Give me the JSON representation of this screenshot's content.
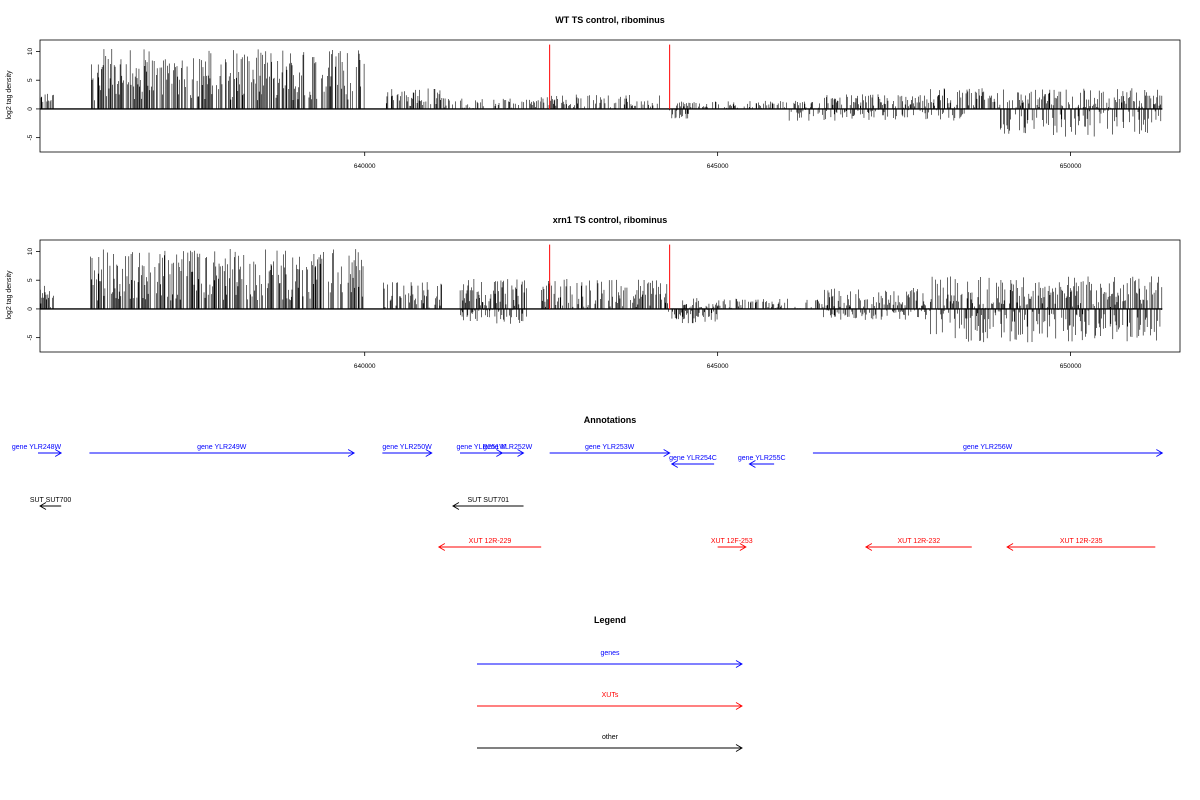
{
  "chart_data": [
    {
      "type": "bar",
      "title": "WT TS control, ribominus",
      "ylabel": "log2 tag density",
      "xlabel": "",
      "xlim": [
        635400,
        651550
      ],
      "ylim": [
        -7.5,
        12
      ],
      "x_ticks": [
        640000,
        645000,
        650000
      ],
      "x_tick_labels": [
        "640000",
        "645000",
        "650000"
      ],
      "y_ticks": [
        -5,
        0,
        5,
        10
      ],
      "y_tick_labels": [
        "-5",
        "0",
        "5",
        "10"
      ],
      "positive_segments": [
        {
          "start": 635400,
          "end": 635600,
          "mean": 1.5,
          "amp": 1.2
        },
        {
          "start": 636100,
          "end": 640000,
          "mean": 5.5,
          "amp": 4.5
        },
        {
          "start": 640300,
          "end": 641100,
          "mean": 1.5,
          "amp": 2.0
        },
        {
          "start": 641100,
          "end": 642500,
          "mean": 0.6,
          "amp": 1.2
        },
        {
          "start": 642500,
          "end": 644200,
          "mean": 1.0,
          "amp": 1.4
        },
        {
          "start": 644400,
          "end": 646500,
          "mean": 0.3,
          "amp": 1.0
        },
        {
          "start": 646500,
          "end": 648000,
          "mean": 1.0,
          "amp": 1.4
        },
        {
          "start": 648000,
          "end": 651300,
          "mean": 1.4,
          "amp": 2.0
        }
      ],
      "negative_segments": [
        {
          "start": 644300,
          "end": 644600,
          "mean": -0.6,
          "amp": 1.0
        },
        {
          "start": 646000,
          "end": 648500,
          "mean": -0.4,
          "amp": 1.5
        },
        {
          "start": 649000,
          "end": 651300,
          "mean": -1.2,
          "amp": 3.3
        }
      ],
      "red_lines": [
        {
          "x": 642620,
          "y": 11.2
        },
        {
          "x": 644320,
          "y": 11.2
        }
      ]
    },
    {
      "type": "bar",
      "title": "xrn1 TS control, ribominus",
      "ylabel": "log2 tag density",
      "xlabel": "",
      "xlim": [
        635400,
        651550
      ],
      "ylim": [
        -7.5,
        12
      ],
      "x_ticks": [
        640000,
        645000,
        650000
      ],
      "x_tick_labels": [
        "640000",
        "645000",
        "650000"
      ],
      "y_ticks": [
        -5,
        0,
        5,
        10
      ],
      "y_tick_labels": [
        "-5",
        "0",
        "5",
        "10"
      ],
      "positive_segments": [
        {
          "start": 635400,
          "end": 635600,
          "mean": 2.0,
          "amp": 2.0
        },
        {
          "start": 636100,
          "end": 640000,
          "mean": 5.5,
          "amp": 4.5
        },
        {
          "start": 640250,
          "end": 641100,
          "mean": 2.0,
          "amp": 2.5
        },
        {
          "start": 641350,
          "end": 642300,
          "mean": 2.5,
          "amp": 2.5
        },
        {
          "start": 642500,
          "end": 644300,
          "mean": 2.5,
          "amp": 2.5
        },
        {
          "start": 644500,
          "end": 646500,
          "mean": 0.6,
          "amp": 1.2
        },
        {
          "start": 646500,
          "end": 648000,
          "mean": 1.5,
          "amp": 2.0
        },
        {
          "start": 648000,
          "end": 651300,
          "mean": 2.4,
          "amp": 3.0
        }
      ],
      "negative_segments": [
        {
          "start": 641350,
          "end": 642300,
          "mean": -1.0,
          "amp": 1.5
        },
        {
          "start": 644300,
          "end": 645000,
          "mean": -1.2,
          "amp": 1.2
        },
        {
          "start": 646500,
          "end": 648000,
          "mean": -0.6,
          "amp": 1.2
        },
        {
          "start": 648000,
          "end": 651300,
          "mean": -2.0,
          "amp": 3.5
        }
      ],
      "red_lines": [
        {
          "x": 642620,
          "y": 11.2
        },
        {
          "x": 644320,
          "y": 11.2
        }
      ]
    }
  ],
  "annotations": {
    "title": "Annotations",
    "items": [
      {
        "label": "gene YLR248W",
        "start": 635000,
        "end": 635700,
        "strand": "+",
        "category": "gene",
        "row": 0
      },
      {
        "label": "gene YLR249W",
        "start": 636100,
        "end": 639850,
        "strand": "+",
        "category": "gene",
        "row": 0
      },
      {
        "label": "gene YLR250W",
        "start": 640250,
        "end": 640950,
        "strand": "+",
        "category": "gene",
        "row": 0
      },
      {
        "label": "gene YLR251W",
        "start": 641350,
        "end": 641950,
        "strand": "+",
        "category": "gene",
        "row": 0
      },
      {
        "label": "gene YLR252W",
        "start": 641800,
        "end": 642250,
        "strand": "+",
        "category": "gene",
        "row": 0
      },
      {
        "label": "gene YLR253W",
        "start": 642620,
        "end": 644320,
        "strand": "+",
        "category": "gene",
        "row": 0
      },
      {
        "label": "gene YLR254C",
        "start": 644350,
        "end": 644950,
        "strand": "-",
        "category": "gene",
        "row": 1
      },
      {
        "label": "gene YLR255C",
        "start": 645450,
        "end": 645800,
        "strand": "-",
        "category": "gene",
        "row": 1
      },
      {
        "label": "gene YLR256W",
        "start": 646350,
        "end": 651300,
        "strand": "+",
        "category": "gene",
        "row": 0
      },
      {
        "label": "SUT SUT700",
        "start": 635400,
        "end": 635700,
        "strand": "-",
        "category": "other",
        "row": 2
      },
      {
        "label": "SUT SUT701",
        "start": 641250,
        "end": 642250,
        "strand": "-",
        "category": "other",
        "row": 2
      },
      {
        "label": "XUT 12R-229",
        "start": 641050,
        "end": 642500,
        "strand": "-",
        "category": "XUT",
        "row": 3
      },
      {
        "label": "XUT 12F-253",
        "start": 645000,
        "end": 645400,
        "strand": "+",
        "category": "XUT",
        "row": 3
      },
      {
        "label": "XUT 12R-232",
        "start": 647100,
        "end": 648600,
        "strand": "-",
        "category": "XUT",
        "row": 3
      },
      {
        "label": "XUT 12R-235",
        "start": 649100,
        "end": 651200,
        "strand": "-",
        "category": "XUT",
        "row": 3
      }
    ]
  },
  "legend": {
    "title": "Legend",
    "items": [
      {
        "label": "genes",
        "color": "#0000ff"
      },
      {
        "label": "XUTs",
        "color": "#ff0000"
      },
      {
        "label": "other",
        "color": "#000000"
      }
    ]
  },
  "colors": {
    "gene": "#0000ff",
    "XUT": "#ff0000",
    "other": "#000000",
    "signal": "#000000",
    "marker": "#ff0000"
  }
}
